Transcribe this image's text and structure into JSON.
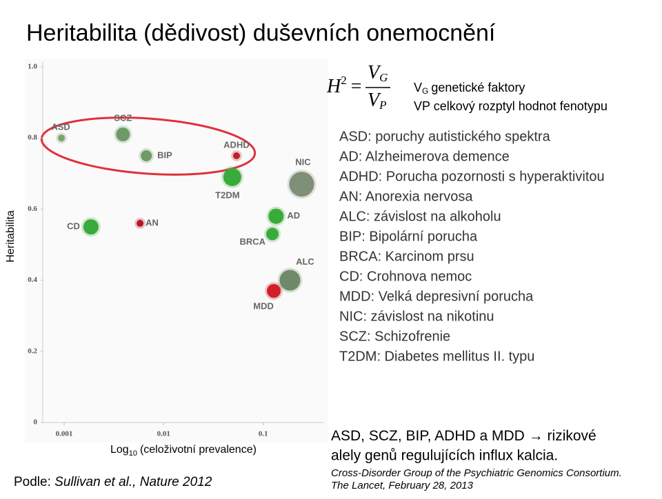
{
  "slide": {
    "title": "Heritabilita (dědivost) duševních onemocnění",
    "formula": {
      "lhs": "H",
      "exp": "2",
      "eq": "=",
      "num_base": "V",
      "num_sub": "G",
      "den_base": "V",
      "den_sub": "P"
    },
    "notes": {
      "vg_base": "V",
      "vg_sub": "G",
      "vg_text": "genetické faktory",
      "vp": "VP celkový rozptyl hodnot fenotypu"
    },
    "abbreviations": [
      "ASD: poruchy autistického spektra",
      "AD: Alzheimerova demence",
      "ADHD: Porucha pozornosti s hyperaktivitou",
      "AN: Anorexia nervosa",
      "ALC: závislost na alkoholu",
      "BIP: Bipolární porucha",
      "BRCA: Karcinom prsu",
      "CD: Crohnova nemoc",
      "MDD: Velká depresivní porucha",
      "NIC: závislost na nikotinu",
      "SCZ: Schizofrenie",
      "T2DM: Diabetes mellitus II. typu"
    ],
    "conclusion": {
      "subject": "ASD, SCZ, BIP, ADHD a MDD",
      "arrow": "→",
      "line1_end": "rizikové",
      "line2": "alely genů regulujících influx kalcia."
    },
    "reference": [
      "Cross-Disorder Group of the Psychiatric Genomics Consortium.",
      "The Lancet, February 28, 2013"
    ],
    "source": {
      "prefix": "Podle:",
      "citation": "Sullivan et al., Nature 2012"
    }
  },
  "chart_data": {
    "type": "scatter",
    "y_label": "Heritabilita",
    "x_label": {
      "base": "Log",
      "sub": "10",
      "rest": "(celoživotní prevalence)"
    },
    "x_scale": "log",
    "categories": [
      "ASD",
      "SCZ",
      "BIP",
      "ADHD",
      "T2DM",
      "NIC",
      "CD",
      "AN",
      "AD",
      "BRCA",
      "ALC",
      "MDD"
    ],
    "x": [
      0.00094,
      0.0039,
      0.0067,
      0.054,
      0.049,
      0.244,
      0.00186,
      0.0058,
      0.135,
      0.124,
      0.186,
      0.128
    ],
    "values": [
      0.8,
      0.81,
      0.75,
      0.75,
      0.69,
      0.67,
      0.55,
      0.56,
      0.58,
      0.53,
      0.4,
      0.37
    ],
    "sizes": [
      5,
      10,
      8,
      5,
      13,
      18,
      11,
      5,
      11,
      9,
      15,
      10
    ],
    "colors": [
      "#7aa36f",
      "#6f9a68",
      "#6f9a68",
      "#c0202a",
      "#3aaa3a",
      "#7f8f78",
      "#3aaa3a",
      "#b01828",
      "#3aaa3a",
      "#3aaa3a",
      "#6f8a68",
      "#d02028"
    ],
    "xlim": [
      0.00061,
      0.41
    ],
    "ylim": [
      0,
      1.0
    ],
    "xticks": [
      0.001,
      0.01,
      0.1
    ],
    "yticks": [
      0,
      0.2,
      0.4,
      0.6,
      0.8,
      {
        "value": 1,
        "label": "1.0"
      }
    ]
  }
}
